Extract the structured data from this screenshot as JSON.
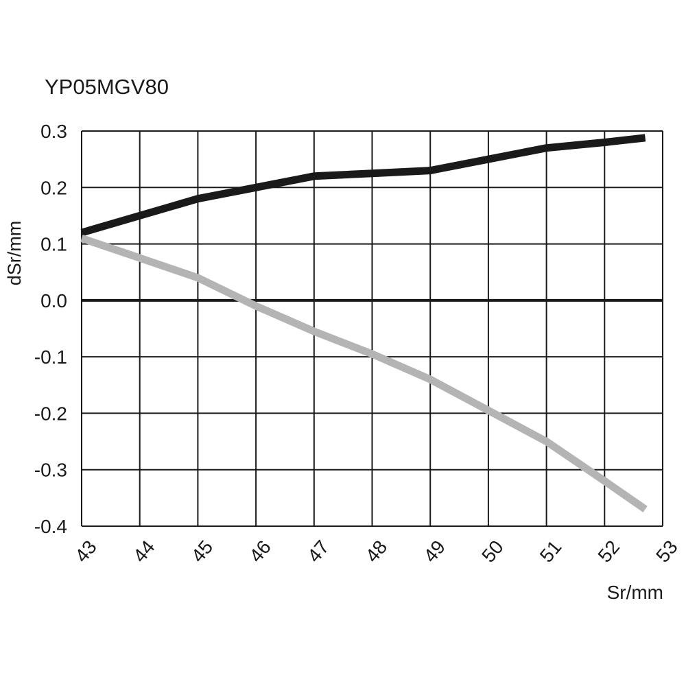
{
  "chart_data": {
    "type": "line",
    "title": "YP05MGV80",
    "xlabel": "Sr/mm",
    "ylabel": "dSr/mm",
    "xlim": [
      43,
      53
    ],
    "ylim": [
      -0.4,
      0.3
    ],
    "grid": true,
    "x_ticks": [
      43,
      44,
      45,
      46,
      47,
      48,
      49,
      50,
      51,
      52,
      53
    ],
    "x_tick_labels": [
      "43",
      "44",
      "45",
      "46",
      "47",
      "48",
      "49",
      "50",
      "51",
      "52",
      "53"
    ],
    "y_ticks": [
      0.3,
      0.2,
      0.1,
      0.0,
      -0.1,
      -0.2,
      -0.3,
      -0.4
    ],
    "y_tick_labels": [
      "0.3",
      "0.2",
      "0.1",
      "0.0",
      "-0.1",
      "-0.2",
      "-0.3",
      "-0.4"
    ],
    "series": [
      {
        "color": "#1a1a1a",
        "x": [
          43,
          44,
          45,
          46,
          47,
          48,
          49,
          50,
          51,
          52,
          52.7
        ],
        "y": [
          0.12,
          0.15,
          0.18,
          0.2,
          0.22,
          0.225,
          0.23,
          0.25,
          0.27,
          0.28,
          0.288
        ]
      },
      {
        "color": "#b4b4b4",
        "x": [
          43,
          44,
          45,
          46,
          47,
          48,
          49,
          50,
          51,
          52,
          52.7
        ],
        "y": [
          0.11,
          0.075,
          0.04,
          -0.01,
          -0.055,
          -0.095,
          -0.14,
          -0.195,
          -0.25,
          -0.32,
          -0.37
        ]
      }
    ]
  }
}
